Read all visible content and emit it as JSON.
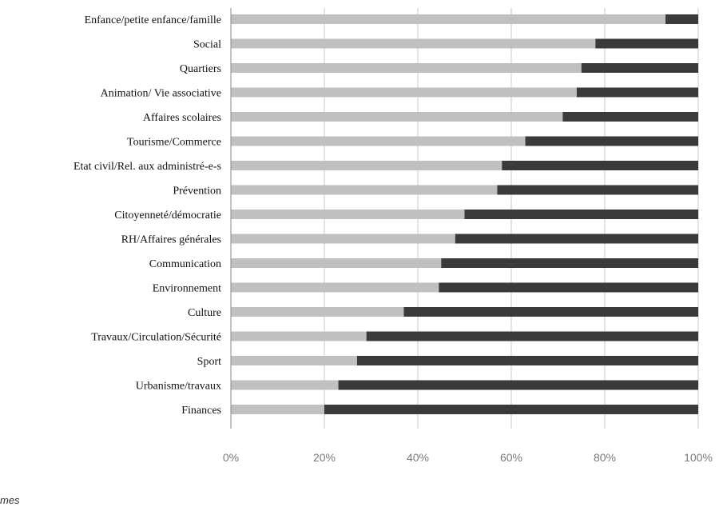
{
  "chart_data": {
    "type": "bar",
    "orientation": "horizontal",
    "stacked": "100%",
    "title": "",
    "xlabel": "",
    "ylabel": "",
    "xlim": [
      0,
      100
    ],
    "x_ticks": [
      "0%",
      "20%",
      "40%",
      "60%",
      "80%",
      "100%"
    ],
    "grid": true,
    "categories": [
      "Enfance/petite enfance/famille",
      "Social",
      "Quartiers",
      "Animation/ Vie associative",
      "Affaires scolaires",
      "Tourisme/Commerce",
      "Etat civil/Rel. aux administré-e-s",
      "Prévention",
      "Citoyenneté/démocratie",
      "RH/Affaires générales",
      "Communication",
      "Environnement",
      "Culture",
      "Travaux/Circulation/Sécurité",
      "Sport",
      "Urbanisme/travaux",
      "Finances"
    ],
    "series": [
      {
        "color": "#c0c0c0",
        "values": [
          93,
          78,
          75,
          74,
          71,
          63,
          58,
          57,
          50,
          48,
          45,
          44.5,
          37,
          29,
          27,
          23,
          20
        ]
      },
      {
        "color": "#3a3a3a",
        "values": [
          7,
          22,
          25,
          26,
          29,
          37,
          42,
          43,
          50,
          52,
          55,
          55.5,
          63,
          71,
          73,
          77,
          80
        ]
      }
    ]
  },
  "footer_fragment": "mes"
}
